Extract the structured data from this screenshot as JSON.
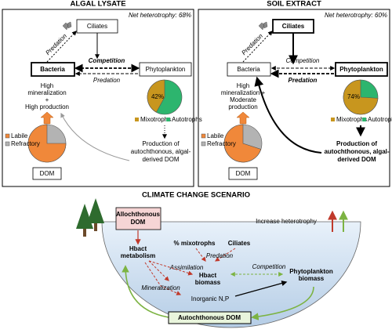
{
  "panels": [
    {
      "title": "ALGAL LYSATE",
      "net": "Net heterotrophy: 68%",
      "ciliates": "Ciliates",
      "bacteria": "Bacteria",
      "phytoplankton": "Phytoplankton",
      "predation_top": "Predation",
      "competition": "Competition",
      "predation_mid": "Predation",
      "bacteria_note": [
        "High",
        "mineralization",
        "+",
        "High production"
      ],
      "phyto_pie": {
        "value": 42,
        "label": "42%"
      },
      "mixotrophs": "Mixotrophs",
      "autotrophs": "Autotrophs",
      "labile": "Labile",
      "refractory": "Refractory",
      "dom": "DOM",
      "dom_labile": 75,
      "production": [
        "Production of",
        "autochthonous, algal-",
        "derived DOM"
      ]
    },
    {
      "title": "SOIL EXTRACT",
      "net": "Net heterotrophy: 60%",
      "ciliates": "Ciliates",
      "bacteria": "Bacteria",
      "phytoplankton": "Phytoplankton",
      "predation_top": "Predation",
      "competition": "Competition",
      "predation_mid": "Predation",
      "bacteria_note": [
        "High",
        "mineralization +",
        "Moderate",
        "production"
      ],
      "phyto_pie": {
        "value": 74,
        "label": "74%"
      },
      "mixotrophs": "Mixotrophs",
      "autotrophs": "Autotrophs",
      "labile": "Labile",
      "refractory": "Refractory",
      "dom": "DOM",
      "dom_labile": 70,
      "production": [
        "Production of",
        "autochthonous, algal-",
        "derived DOM"
      ]
    }
  ],
  "scenario": {
    "title": "CLIMATE CHANGE SCENARIO",
    "allochthonous": [
      "Allochthonous",
      "DOM"
    ],
    "increase": "Increase heterotrophy",
    "hbact_metabolism": [
      "Hbact",
      "metabolism"
    ],
    "mixotrophs": "% mixotrophs",
    "ciliates": "Ciliates",
    "predation": "Predation",
    "assimilation": "Assimilation",
    "competition": "Competition",
    "hbact_biomass": [
      "Hbact",
      "biomass"
    ],
    "phyto_biomass": [
      "Phytoplankton",
      "biomass"
    ],
    "mineralization": "Mineralization",
    "inorganic": "Inorganic N,P",
    "autochthonous": "Autochthonous DOM"
  }
}
